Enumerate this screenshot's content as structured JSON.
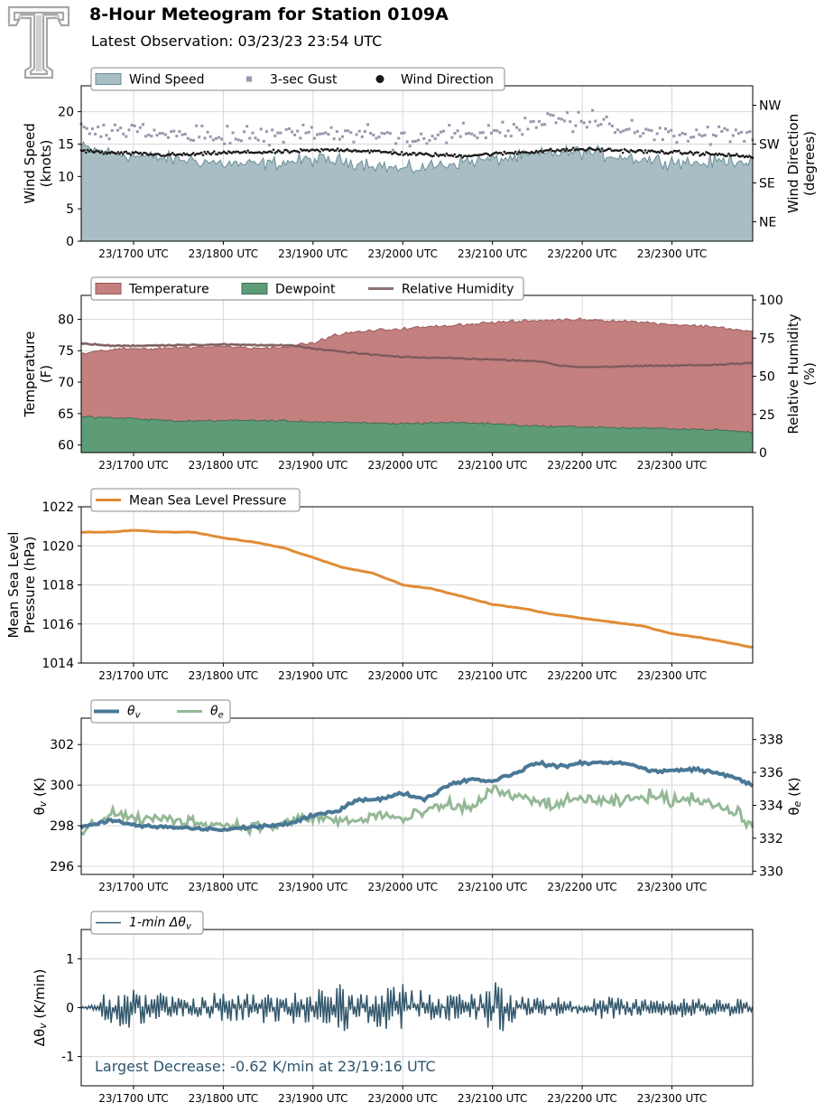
{
  "header": {
    "title": "8-Hour Meteogram for Station 0109A",
    "subtitle": "Latest Observation: 03/23/23 23:54 UTC"
  },
  "colors": {
    "wind_fill": "#a8bec4",
    "wind_edge": "#6b8f98",
    "gust": "#9a95ad",
    "direction": "#1a1a1a",
    "temperature": "#c47f7f",
    "dewpoint": "#5e9c78",
    "rh": "#8b7272",
    "pressure": "#e08c35",
    "theta_v": "#4a7896",
    "theta_e": "#94b896",
    "dtheta": "#33586c",
    "annotation": "#2d546e",
    "logo": "#a8a8a8"
  },
  "chart_data": [
    {
      "type": "area",
      "id": "wind",
      "x_ticks": [
        "23/1700 UTC",
        "23/1800 UTC",
        "23/1900 UTC",
        "23/2000 UTC",
        "23/2100 UTC",
        "23/2200 UTC",
        "23/2300 UTC"
      ],
      "xlim": [
        "16:25",
        "23:54"
      ],
      "ylabel": "Wind Speed\n(knots)",
      "ylim": [
        0,
        24
      ],
      "y_ticks": [
        0,
        5,
        10,
        15,
        20
      ],
      "y2label": "Wind Direction\n(degrees)",
      "y2lim": [
        0,
        360
      ],
      "y2_ticks": [
        {
          "value": 45,
          "label": "NE"
        },
        {
          "value": 135,
          "label": "SE"
        },
        {
          "value": 225,
          "label": "SW"
        },
        {
          "value": 315,
          "label": "NW"
        }
      ],
      "legend": [
        "Wind Speed",
        "3-sec Gust",
        "Wind Direction"
      ],
      "legend_placement": "top-left",
      "grid": true,
      "series": [
        {
          "name": "Wind Speed",
          "kind": "area",
          "axis": "left",
          "x_hours": [
            16.42,
            16.67,
            17.0,
            17.33,
            17.67,
            18.0,
            18.33,
            18.67,
            19.0,
            19.33,
            19.67,
            20.0,
            20.33,
            20.67,
            21.0,
            21.33,
            21.67,
            22.0,
            22.33,
            22.67,
            23.0,
            23.33,
            23.67,
            23.9
          ],
          "values": [
            14.5,
            13.8,
            13.2,
            12.8,
            12.5,
            12.0,
            11.8,
            12.2,
            12.6,
            12.4,
            11.9,
            11.0,
            11.6,
            12.3,
            12.6,
            13.0,
            13.6,
            13.8,
            13.3,
            12.7,
            12.4,
            12.0,
            12.6,
            12.3
          ]
        },
        {
          "name": "3-sec Gust",
          "kind": "scatter",
          "axis": "left",
          "x_hours": [
            16.42,
            16.67,
            17.0,
            17.33,
            17.67,
            18.0,
            18.33,
            18.67,
            19.0,
            19.33,
            19.67,
            20.0,
            20.33,
            20.67,
            21.0,
            21.33,
            21.67,
            22.0,
            22.33,
            22.67,
            23.0,
            23.33,
            23.67,
            23.9
          ],
          "values": [
            16.5,
            16.2,
            16.8,
            16.0,
            15.8,
            15.6,
            15.5,
            15.9,
            16.3,
            16.2,
            15.8,
            15.3,
            15.7,
            16.0,
            16.4,
            17.0,
            17.8,
            17.9,
            17.3,
            16.8,
            16.2,
            15.9,
            16.1,
            15.7
          ]
        },
        {
          "name": "Wind Direction",
          "kind": "scatter",
          "axis": "right",
          "x_hours": [
            16.42,
            16.67,
            17.0,
            17.33,
            17.67,
            18.0,
            18.33,
            18.67,
            19.0,
            19.33,
            19.67,
            20.0,
            20.33,
            20.67,
            21.0,
            21.33,
            21.67,
            22.0,
            22.33,
            22.67,
            23.0,
            23.33,
            23.67,
            23.9
          ],
          "values": [
            210,
            205,
            203,
            200,
            201,
            205,
            206,
            207,
            210,
            212,
            208,
            203,
            200,
            198,
            202,
            206,
            210,
            213,
            211,
            208,
            206,
            203,
            199,
            195
          ]
        }
      ]
    },
    {
      "type": "area",
      "id": "temperature",
      "x_ticks": [
        "23/1700 UTC",
        "23/1800 UTC",
        "23/1900 UTC",
        "23/2000 UTC",
        "23/2100 UTC",
        "23/2200 UTC",
        "23/2300 UTC"
      ],
      "xlim": [
        "16:25",
        "23:54"
      ],
      "ylabel": "Temperature\n(F)",
      "ylim": [
        58.8,
        83.8
      ],
      "y_ticks": [
        60,
        65,
        70,
        75,
        80
      ],
      "y2label": "Relative Humidity\n(%)",
      "y2lim": [
        0,
        103
      ],
      "y2_ticks": [
        0,
        25,
        50,
        75,
        100
      ],
      "legend": [
        "Temperature",
        "Dewpoint",
        "Relative Humidity"
      ],
      "legend_placement": "top-left",
      "grid": true,
      "series": [
        {
          "name": "Temperature",
          "kind": "area",
          "axis": "left",
          "x_hours": [
            16.42,
            16.75,
            17.0,
            17.5,
            18.0,
            18.5,
            19.0,
            19.25,
            19.5,
            19.75,
            20.0,
            20.5,
            21.0,
            21.5,
            22.0,
            22.5,
            23.0,
            23.5,
            23.9
          ],
          "values": [
            74.5,
            75.2,
            75.3,
            75.5,
            75.7,
            75.4,
            76.2,
            77.5,
            78.0,
            78.3,
            78.5,
            79.0,
            79.5,
            79.8,
            80.0,
            79.7,
            79.2,
            78.8,
            78.0
          ]
        },
        {
          "name": "Dewpoint",
          "kind": "area",
          "axis": "left",
          "x_hours": [
            16.42,
            17.0,
            17.5,
            18.0,
            18.5,
            19.0,
            19.5,
            20.0,
            20.5,
            21.0,
            21.5,
            22.0,
            22.5,
            23.0,
            23.5,
            23.9
          ],
          "values": [
            64.5,
            64.2,
            63.8,
            63.9,
            63.9,
            63.7,
            63.5,
            63.4,
            63.6,
            63.4,
            63.0,
            62.9,
            62.7,
            62.6,
            62.4,
            62.0
          ]
        },
        {
          "name": "Relative Humidity",
          "kind": "line",
          "axis": "right",
          "x_hours": [
            16.42,
            16.75,
            17.0,
            17.5,
            18.0,
            18.5,
            18.75,
            19.0,
            19.5,
            20.0,
            20.5,
            21.0,
            21.5,
            21.75,
            22.0,
            22.5,
            23.0,
            23.5,
            23.9
          ],
          "values": [
            71.5,
            70.0,
            70.0,
            70.5,
            70.8,
            70.3,
            70.5,
            68.0,
            65.0,
            62.5,
            62.0,
            61.0,
            60.0,
            57.0,
            56.0,
            56.5,
            57.0,
            57.5,
            59.0
          ]
        }
      ]
    },
    {
      "type": "line",
      "id": "pressure",
      "x_ticks": [
        "23/1700 UTC",
        "23/1800 UTC",
        "23/1900 UTC",
        "23/2000 UTC",
        "23/2100 UTC",
        "23/2200 UTC",
        "23/2300 UTC"
      ],
      "xlim": [
        "16:25",
        "23:54"
      ],
      "ylabel": "Mean Sea Level\nPressure (hPa)",
      "ylim": [
        1014,
        1022
      ],
      "y_ticks": [
        1014,
        1016,
        1018,
        1020,
        1022
      ],
      "legend": [
        "Mean Sea Level Pressure"
      ],
      "legend_placement": "top-left",
      "grid": true,
      "series": [
        {
          "name": "Mean Sea Level Pressure",
          "x_hours": [
            16.42,
            16.75,
            17.0,
            17.33,
            17.67,
            18.0,
            18.33,
            18.67,
            19.0,
            19.33,
            19.67,
            20.0,
            20.33,
            20.67,
            21.0,
            21.33,
            21.67,
            22.0,
            22.33,
            22.67,
            23.0,
            23.33,
            23.67,
            23.9
          ],
          "values": [
            1020.7,
            1020.7,
            1020.8,
            1020.7,
            1020.7,
            1020.4,
            1020.2,
            1019.9,
            1019.4,
            1018.9,
            1018.6,
            1018.0,
            1017.8,
            1017.4,
            1017.0,
            1016.8,
            1016.5,
            1016.3,
            1016.1,
            1015.9,
            1015.5,
            1015.3,
            1015.0,
            1014.8
          ]
        }
      ]
    },
    {
      "type": "line",
      "id": "theta",
      "x_ticks": [
        "23/1700 UTC",
        "23/1800 UTC",
        "23/1900 UTC",
        "23/2000 UTC",
        "23/2100 UTC",
        "23/2200 UTC",
        "23/2300 UTC"
      ],
      "xlim": [
        "16:25",
        "23:54"
      ],
      "ylabel": "θv (K)",
      "ylim": [
        295.6,
        303.3
      ],
      "y_ticks": [
        296,
        298,
        300,
        302
      ],
      "y2label": "θe (K)",
      "y2lim": [
        329.8,
        339.3
      ],
      "y2_ticks": [
        330,
        332,
        334,
        336,
        338
      ],
      "legend": [
        "θv",
        "θe"
      ],
      "legend_placement": "top-left",
      "grid": true,
      "series": [
        {
          "name": "θv",
          "axis": "left",
          "x_hours": [
            16.42,
            16.75,
            17.0,
            17.5,
            18.0,
            18.5,
            18.75,
            19.0,
            19.25,
            19.5,
            19.75,
            20.0,
            20.25,
            20.5,
            20.75,
            21.0,
            21.25,
            21.5,
            21.75,
            22.0,
            22.25,
            22.5,
            22.75,
            23.0,
            23.25,
            23.5,
            23.75,
            23.9
          ],
          "values": [
            297.9,
            298.3,
            298.0,
            297.9,
            297.8,
            298.0,
            298.1,
            298.5,
            298.7,
            299.3,
            299.3,
            299.6,
            299.3,
            300.0,
            300.3,
            300.2,
            300.6,
            301.1,
            300.9,
            301.1,
            301.1,
            301.1,
            300.7,
            300.7,
            300.8,
            300.6,
            300.3,
            300.0
          ]
        },
        {
          "name": "θe",
          "axis": "right",
          "x_hours": [
            16.42,
            16.75,
            17.0,
            17.5,
            18.0,
            18.5,
            18.75,
            19.0,
            19.25,
            19.5,
            19.75,
            20.0,
            20.25,
            20.5,
            20.75,
            21.0,
            21.25,
            21.5,
            21.75,
            22.0,
            22.25,
            22.5,
            22.75,
            23.0,
            23.25,
            23.5,
            23.75,
            23.9
          ],
          "values": [
            332.3,
            333.6,
            333.2,
            333.1,
            332.8,
            332.7,
            333.0,
            333.3,
            333.1,
            333.0,
            333.5,
            333.1,
            333.6,
            334.0,
            333.8,
            335.0,
            334.5,
            334.2,
            334.0,
            334.5,
            334.1,
            334.3,
            334.6,
            334.3,
            334.5,
            334.0,
            333.4,
            332.8
          ]
        }
      ]
    },
    {
      "type": "line",
      "id": "dtheta",
      "x_ticks": [
        "23/1700 UTC",
        "23/1800 UTC",
        "23/1900 UTC",
        "23/2000 UTC",
        "23/2100 UTC",
        "23/2200 UTC",
        "23/2300 UTC"
      ],
      "xlim": [
        "16:25",
        "23:54"
      ],
      "ylabel": "Δθv (K/min)",
      "ylim": [
        -1.6,
        1.6
      ],
      "y_ticks": [
        -1,
        0,
        1
      ],
      "legend": [
        "1-min Δθv"
      ],
      "legend_placement": "top-left",
      "grid": true,
      "annotation": "Largest Decrease: -0.62 K/min at 23/19:16 UTC",
      "series": [
        {
          "name": "1-min Δθv",
          "x_hours": [
            16.42,
            16.6,
            16.8,
            17.0,
            17.2,
            17.4,
            17.6,
            17.8,
            18.0,
            18.2,
            18.4,
            18.6,
            18.8,
            19.0,
            19.27,
            19.4,
            19.6,
            19.8,
            20.0,
            20.2,
            20.4,
            20.6,
            20.8,
            21.0,
            21.2,
            21.4,
            21.6,
            21.8,
            22.0,
            22.2,
            22.4,
            22.6,
            22.8,
            23.0,
            23.2,
            23.4,
            23.6,
            23.8,
            23.9
          ],
          "values": [
            0.0,
            0.3,
            -0.4,
            0.35,
            -0.3,
            0.2,
            -0.2,
            0.3,
            -0.25,
            0.3,
            -0.3,
            0.4,
            -0.3,
            0.4,
            -0.62,
            0.3,
            -0.4,
            0.5,
            -0.4,
            0.3,
            -0.3,
            0.3,
            -0.4,
            0.55,
            -0.3,
            0.2,
            -0.2,
            0.1,
            -0.15,
            0.2,
            -0.15,
            0.15,
            -0.15,
            0.2,
            -0.15,
            0.2,
            -0.15,
            0.1,
            0.3
          ]
        }
      ]
    }
  ]
}
